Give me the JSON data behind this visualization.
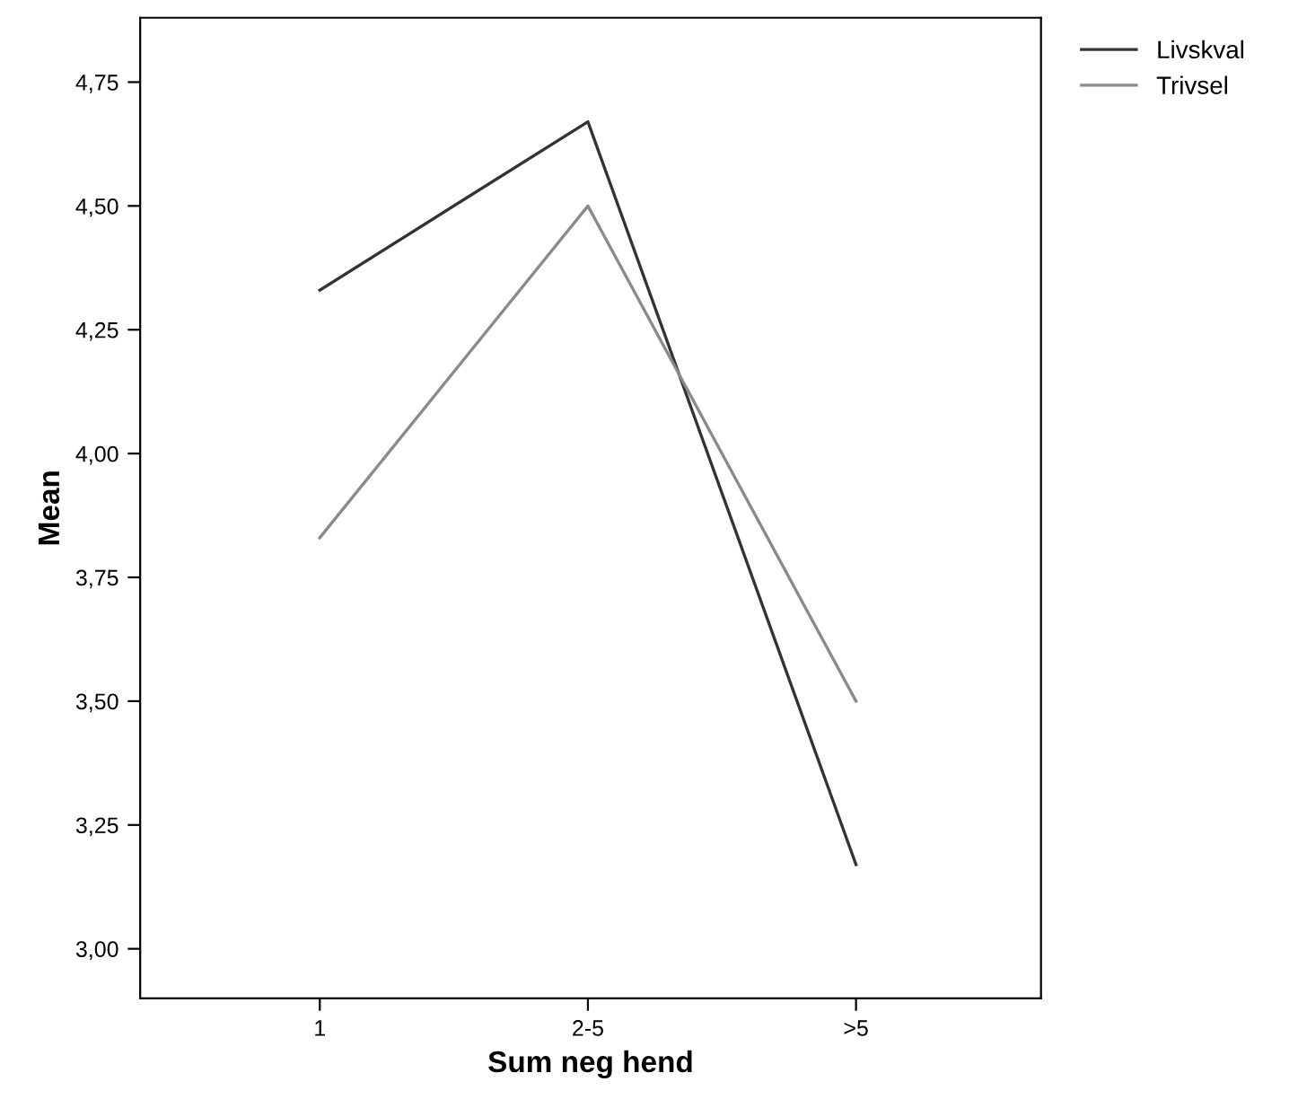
{
  "chart_data": {
    "type": "line",
    "xlabel": "Sum neg hend",
    "ylabel": "Mean",
    "categories": [
      "1",
      "2-5",
      ">5"
    ],
    "series": [
      {
        "name": "Livskval",
        "color": "#333333",
        "values": [
          4.33,
          4.67,
          3.17
        ]
      },
      {
        "name": "Trivsel",
        "color": "#8a8a8a",
        "values": [
          3.83,
          4.5,
          3.5
        ]
      }
    ],
    "ylim": [
      2.9,
      4.88
    ],
    "yticks": [
      {
        "value": 3.0,
        "label": "3,00"
      },
      {
        "value": 3.25,
        "label": "3,25"
      },
      {
        "value": 3.5,
        "label": "3,50"
      },
      {
        "value": 3.75,
        "label": "3,75"
      },
      {
        "value": 4.0,
        "label": "4,00"
      },
      {
        "value": 4.25,
        "label": "4,25"
      },
      {
        "value": 4.5,
        "label": "4,50"
      },
      {
        "value": 4.75,
        "label": "4,75"
      }
    ],
    "grid": false,
    "legend": "top right",
    "marker": "none",
    "line_style": "solid"
  }
}
